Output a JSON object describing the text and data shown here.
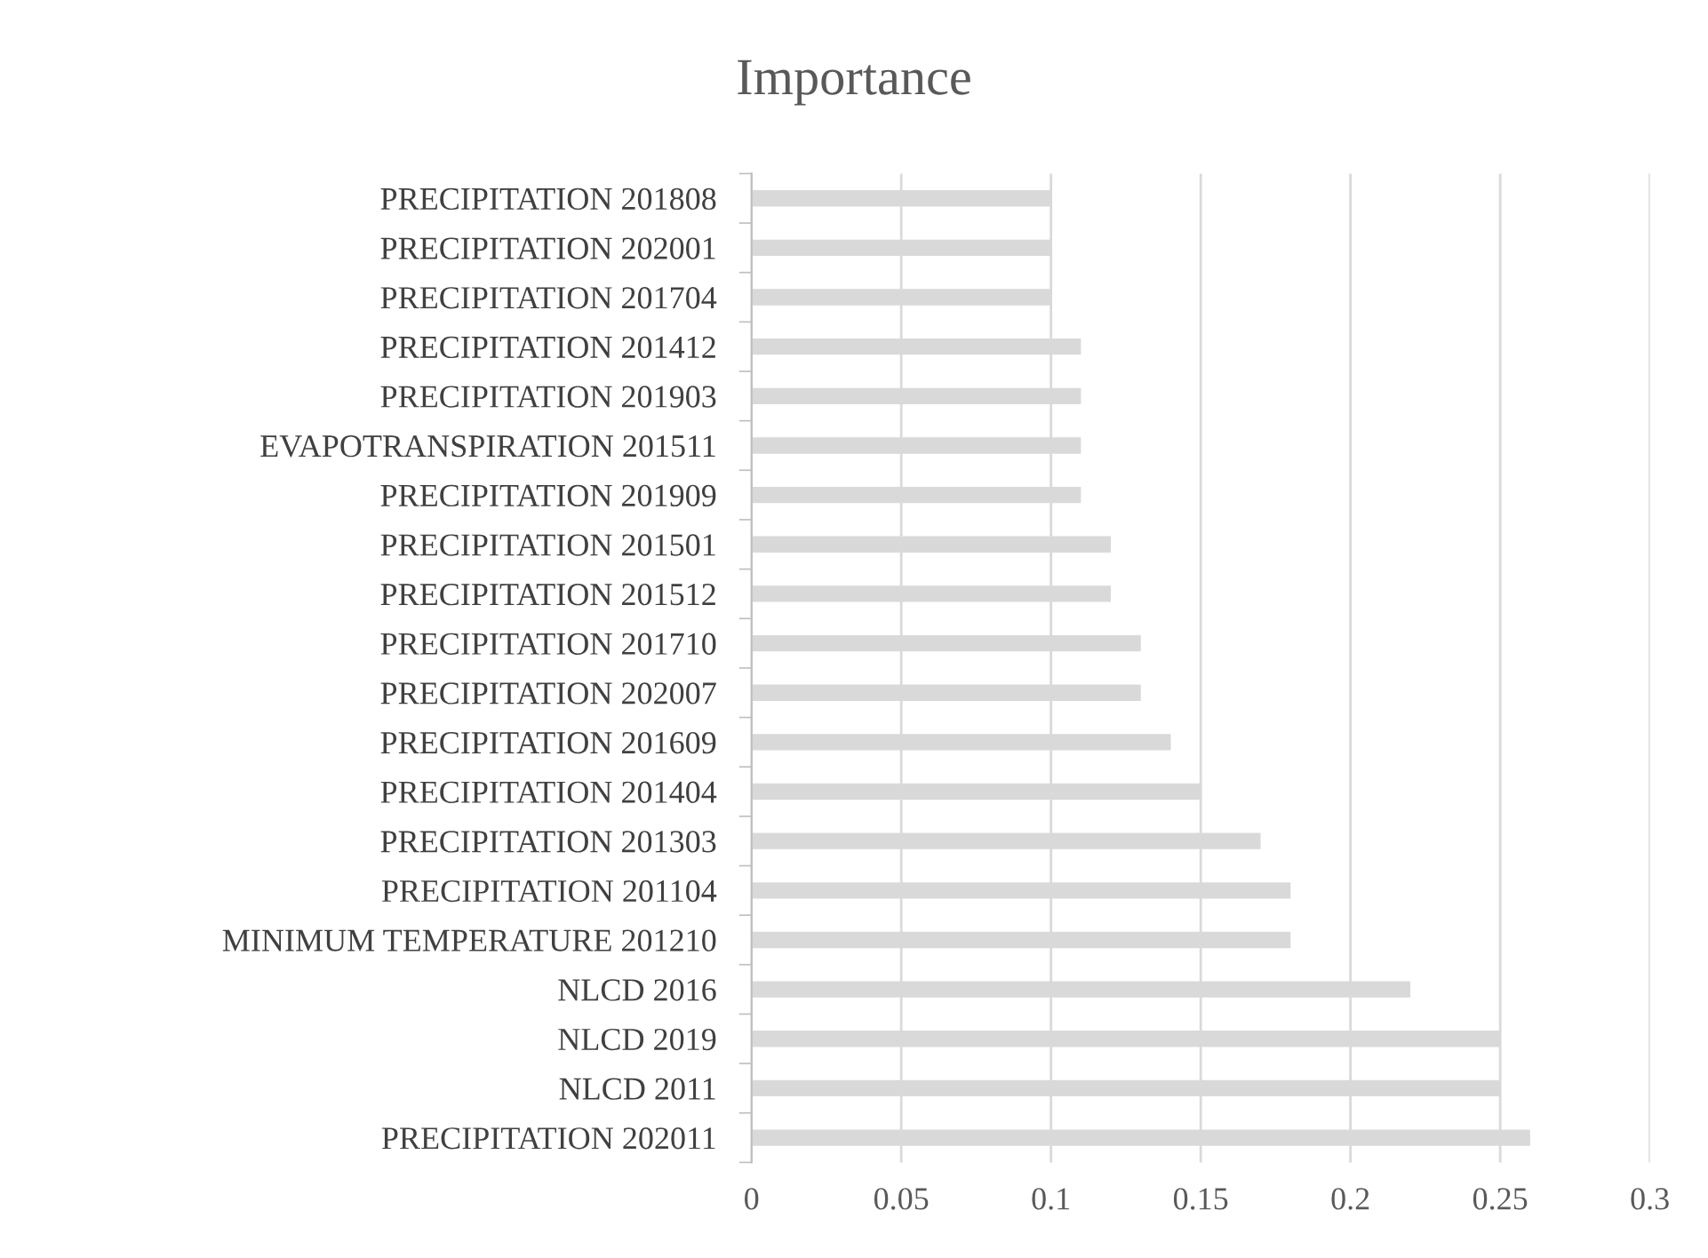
{
  "chart_data": {
    "type": "bar",
    "orientation": "horizontal",
    "title": "Importance",
    "categories": [
      "PRECIPITATION 201808",
      "PRECIPITATION 202001",
      "PRECIPITATION 201704",
      "PRECIPITATION 201412",
      "PRECIPITATION 201903",
      "EVAPOTRANSPIRATION 201511",
      "PRECIPITATION 201909",
      "PRECIPITATION 201501",
      "PRECIPITATION 201512",
      "PRECIPITATION 201710",
      "PRECIPITATION 202007",
      "PRECIPITATION 201609",
      "PRECIPITATION 201404",
      "PRECIPITATION 201303",
      "PRECIPITATION 201104",
      "MINIMUM TEMPERATURE 201210",
      "NLCD 2016",
      "NLCD 2019",
      "NLCD 2011",
      "PRECIPITATION 202011"
    ],
    "values": [
      0.1,
      0.1,
      0.1,
      0.11,
      0.11,
      0.11,
      0.11,
      0.12,
      0.12,
      0.13,
      0.13,
      0.14,
      0.15,
      0.17,
      0.18,
      0.18,
      0.22,
      0.25,
      0.25,
      0.26
    ],
    "color": "#d9d9d9",
    "xlim": [
      0,
      0.3
    ],
    "xticks": [
      0,
      0.05,
      0.1,
      0.15,
      0.2,
      0.25,
      0.3
    ],
    "grid": "x"
  }
}
